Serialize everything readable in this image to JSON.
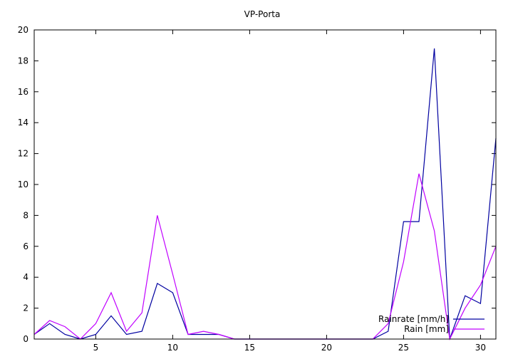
{
  "chart_data": {
    "type": "line",
    "title": "VP-Porta",
    "xlabel": "",
    "ylabel": "",
    "xlim": [
      1,
      31
    ],
    "ylim": [
      0,
      20
    ],
    "xticks": [
      5,
      10,
      15,
      20,
      25,
      30
    ],
    "yticks": [
      0,
      2,
      4,
      6,
      8,
      10,
      12,
      14,
      16,
      18,
      20
    ],
    "grid": false,
    "legend_position": "bottom-right",
    "x": [
      1,
      2,
      3,
      4,
      5,
      6,
      7,
      8,
      9,
      10,
      11,
      12,
      13,
      14,
      15,
      16,
      17,
      18,
      19,
      20,
      21,
      22,
      23,
      24,
      25,
      26,
      27,
      28,
      29,
      30,
      31
    ],
    "series": [
      {
        "name": "Rainrate [mm/h]",
        "color": "#0000a0",
        "values": [
          0.3,
          1.0,
          0.3,
          0.0,
          0.3,
          1.5,
          0.3,
          0.5,
          3.6,
          3.0,
          0.3,
          0.3,
          0.3,
          0.0,
          0.0,
          0.0,
          0.0,
          0.0,
          0.0,
          0.0,
          0.0,
          0.0,
          0.0,
          0.5,
          7.6,
          7.6,
          18.8,
          0.0,
          2.8,
          2.3,
          13.0
        ]
      },
      {
        "name": "Rain [mm]",
        "color": "#c000ff",
        "values": [
          0.3,
          1.2,
          0.8,
          0.0,
          1.0,
          3.0,
          0.5,
          1.7,
          8.0,
          4.2,
          0.3,
          0.5,
          0.3,
          0.0,
          0.0,
          0.0,
          0.0,
          0.0,
          0.0,
          0.0,
          0.0,
          0.0,
          0.0,
          1.0,
          5.0,
          10.7,
          7.0,
          0.0,
          2.0,
          3.5,
          6.0
        ]
      }
    ]
  }
}
